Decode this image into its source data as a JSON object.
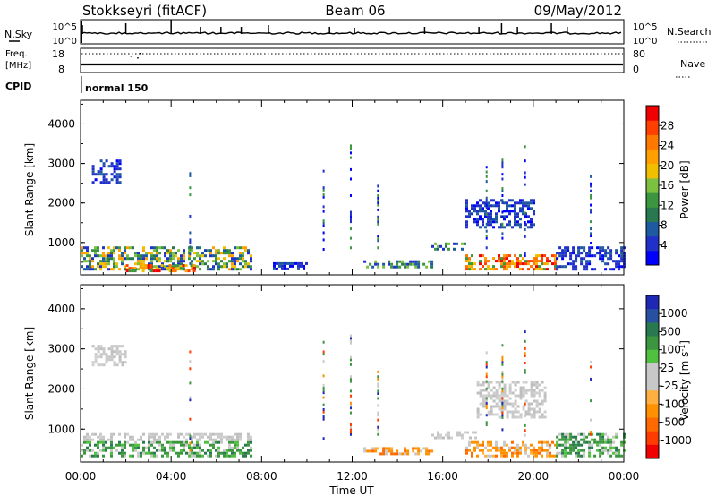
{
  "header": {
    "station": "Stokkseyri (fitACF)",
    "beam": "Beam 06",
    "date": "09/May/2012"
  },
  "noise_panel": {
    "left_label": "N.Sky",
    "right_label": "N.Search",
    "left_ticks": [
      "10^5",
      "10^0"
    ],
    "right_ticks": [
      "10^5",
      "10^0"
    ]
  },
  "freq_panel": {
    "left_label_1": "Freq.",
    "left_label_2": "[MHz]",
    "right_label": "Nave",
    "left_ticks": [
      "18",
      "8"
    ],
    "right_ticks": [
      "80",
      "0"
    ]
  },
  "cpid_panel": {
    "label": "CPID",
    "value": "normal 150"
  },
  "x_axis": {
    "label": "Time UT",
    "ticks": [
      "00:00",
      "04:00",
      "08:00",
      "12:00",
      "16:00",
      "20:00",
      "00:00"
    ]
  },
  "chart_data": [
    {
      "type": "heatmap",
      "name": "power",
      "xlabel": "Time UT",
      "ylabel": "Slant Range [km]",
      "xlim_hours": [
        0,
        24
      ],
      "ylim_km": [
        180,
        4600
      ],
      "yticks": [
        "1000",
        "2000",
        "3000",
        "4000"
      ],
      "colorbar": {
        "label": "Power [dB]",
        "ticks": [
          "4",
          "8",
          "12",
          "16",
          "20",
          "24",
          "28"
        ],
        "colors": [
          "#0000ff",
          "#2030c8",
          "#1e5aa0",
          "#287850",
          "#3c9640",
          "#7cc040",
          "#f0c000",
          "#ffa000",
          "#ff7800",
          "#ff4000",
          "#f00000"
        ]
      },
      "echo_regions": [
        {
          "t_start": 0.0,
          "t_end": 7.5,
          "r_min": 300,
          "r_max": 900,
          "level": "mid-high"
        },
        {
          "t_start": 2.0,
          "t_end": 5.0,
          "r_min": 300,
          "r_max": 450,
          "level": "high"
        },
        {
          "t_start": 0.5,
          "t_end": 1.8,
          "r_min": 2500,
          "r_max": 3100,
          "level": "low"
        },
        {
          "t_start": 8.5,
          "t_end": 10.0,
          "r_min": 350,
          "r_max": 500,
          "level": "low"
        },
        {
          "t_start": 12.5,
          "t_end": 15.5,
          "r_min": 350,
          "r_max": 550,
          "level": "mid"
        },
        {
          "t_start": 15.5,
          "t_end": 17.0,
          "r_min": 800,
          "r_max": 1000,
          "level": "mid"
        },
        {
          "t_start": 17.0,
          "t_end": 21.0,
          "r_min": 300,
          "r_max": 700,
          "level": "high"
        },
        {
          "t_start": 17.0,
          "t_end": 20.0,
          "r_min": 1400,
          "r_max": 2100,
          "level": "low"
        },
        {
          "t_start": 21.0,
          "t_end": 24.0,
          "r_min": 300,
          "r_max": 900,
          "level": "low"
        }
      ]
    },
    {
      "type": "heatmap",
      "name": "velocity",
      "xlabel": "Time UT",
      "ylabel": "Slant Range [km]",
      "xlim_hours": [
        0,
        24
      ],
      "ylim_km": [
        180,
        4600
      ],
      "yticks": [
        "1000",
        "2000",
        "3000",
        "4000"
      ],
      "colorbar": {
        "label": "Velocity [m s^-1]",
        "ticks": [
          "1000",
          "500",
          "100",
          "25",
          "-25",
          "-100",
          "-500",
          "-1000"
        ],
        "colors": [
          "#1e28b4",
          "#2850a0",
          "#287850",
          "#3c9640",
          "#50c040",
          "#c8c8c8",
          "#c8c8c8",
          "#ffb040",
          "#ff9000",
          "#ff6a00",
          "#ff3c00",
          "#f00000"
        ]
      },
      "echo_regions": [
        {
          "t_start": 0.0,
          "t_end": 7.5,
          "r_min": 300,
          "r_max": 700,
          "level": "positive"
        },
        {
          "t_start": 0.0,
          "t_end": 7.5,
          "r_min": 700,
          "r_max": 900,
          "level": "ground"
        },
        {
          "t_start": 0.5,
          "t_end": 2.0,
          "r_min": 2600,
          "r_max": 3100,
          "level": "ground"
        },
        {
          "t_start": 12.5,
          "t_end": 15.5,
          "r_min": 350,
          "r_max": 550,
          "level": "negative"
        },
        {
          "t_start": 15.5,
          "t_end": 17.5,
          "r_min": 750,
          "r_max": 950,
          "level": "ground"
        },
        {
          "t_start": 17.0,
          "t_end": 21.0,
          "r_min": 300,
          "r_max": 700,
          "level": "negative"
        },
        {
          "t_start": 17.5,
          "t_end": 20.5,
          "r_min": 1300,
          "r_max": 2200,
          "level": "ground"
        },
        {
          "t_start": 21.0,
          "t_end": 24.0,
          "r_min": 300,
          "r_max": 900,
          "level": "positive"
        }
      ]
    }
  ]
}
